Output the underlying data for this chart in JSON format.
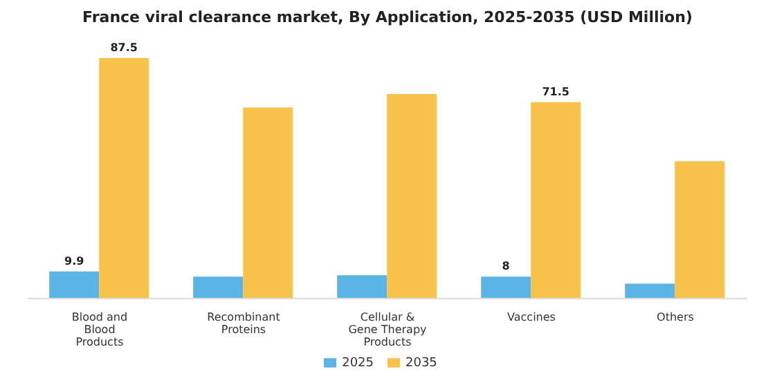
{
  "chart_data": {
    "type": "bar",
    "title": "France viral clearance market, By Application, 2025-2035 (USD Million)",
    "categories": [
      "Blood and Blood Products",
      "Recombinant Proteins",
      "Cellular & Gene Therapy Products",
      "Vaccines",
      "Others"
    ],
    "series": [
      {
        "name": "2025",
        "color": "#5ab4e5",
        "values": [
          9.9,
          8.0,
          8.5,
          8,
          5.4
        ],
        "value_labels": [
          "9.9",
          null,
          null,
          "8",
          null
        ]
      },
      {
        "name": "2035",
        "color": "#f9c24a",
        "values": [
          87.5,
          69.5,
          74.4,
          71.5,
          50.0
        ],
        "value_labels": [
          "87.5",
          null,
          null,
          "71.5",
          null
        ]
      }
    ],
    "grid": false,
    "legend": "bottom"
  }
}
